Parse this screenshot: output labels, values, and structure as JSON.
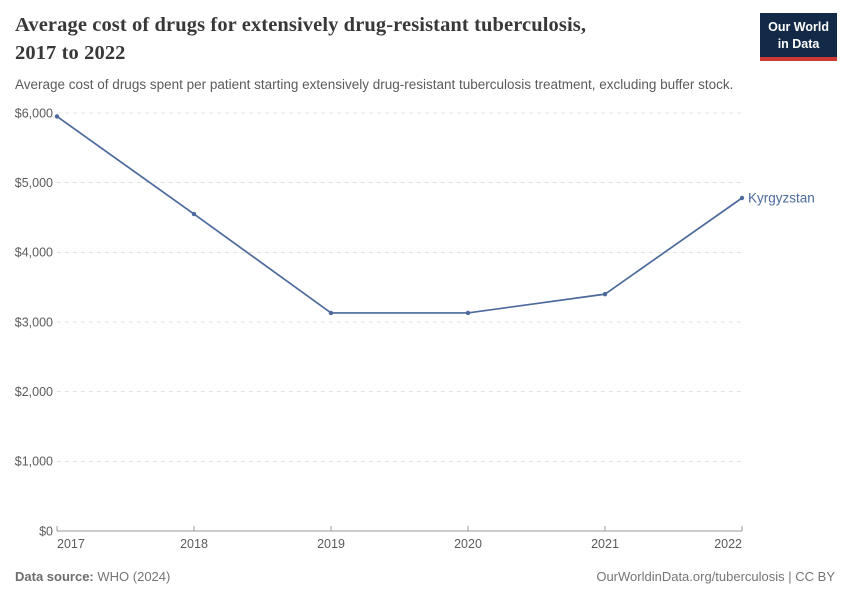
{
  "header": {
    "title": "Average cost of drugs for extensively drug-resistant tuberculosis, 2017 to 2022",
    "title_lines": [
      "Average cost of drugs for extensively drug-resistant tuberculosis,",
      "2017 to 2022"
    ],
    "subtitle": "Average cost of drugs spent per patient starting extensively drug-resistant tuberculosis treatment, excluding buffer stock.",
    "logo": {
      "line1": "Our World",
      "line2": "in Data"
    }
  },
  "chart_data": {
    "type": "line",
    "title": "Average cost of drugs for extensively drug-resistant tuberculosis, 2017 to 2022",
    "subtitle": "Average cost of drugs spent per patient starting extensively drug-resistant tuberculosis treatment, excluding buffer stock.",
    "x": [
      2017,
      2018,
      2019,
      2020,
      2021,
      2022
    ],
    "x_tick_labels": [
      "2017",
      "2018",
      "2019",
      "2020",
      "2021",
      "2022"
    ],
    "series": [
      {
        "name": "Kyrgyzstan",
        "color": "#4C6A9C",
        "values": [
          5950,
          4550,
          3130,
          3130,
          3400,
          4780
        ]
      }
    ],
    "unit": "US$",
    "ylim": [
      0,
      6000
    ],
    "y_ticks": [
      0,
      1000,
      2000,
      3000,
      4000,
      5000,
      6000
    ],
    "y_tick_labels": [
      "$0",
      "$1,000",
      "$2,000",
      "$3,000",
      "$4,000",
      "$5,000",
      "$6,000"
    ],
    "grid": "horizontal-dashed",
    "legend_position": "end-of-line-label"
  },
  "footer": {
    "source_label": "Data source:",
    "source_value": "WHO (2024)",
    "right_text": "OurWorldinData.org/tuberculosis | CC BY"
  },
  "colors": {
    "line": "#4C6A9C",
    "entity_label": "#4C6A9C",
    "grid": "#e4e4e4",
    "axis": "#9a9a9a",
    "tick_label": "#5b5b5b",
    "title_text": "#383838",
    "subtitle_text": "#5b5b5b",
    "footer_text": "#757575",
    "logo_bg": "#122947",
    "logo_red": "#cc3b33",
    "background": "#ffffff"
  }
}
